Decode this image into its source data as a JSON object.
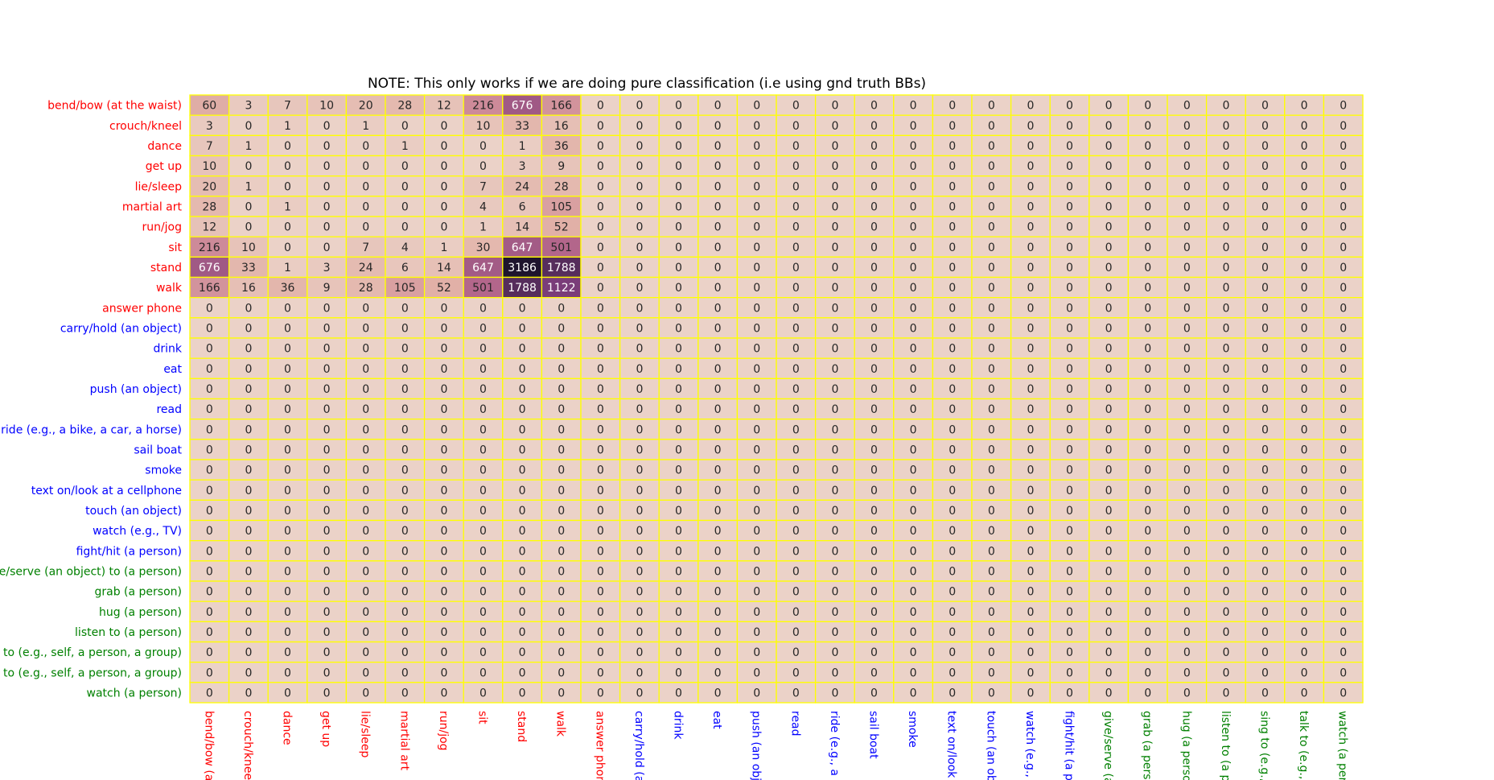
{
  "chart_data": {
    "type": "heatmap",
    "title": "NOTE: This only works if we are doing pure classification (i.e using gnd truth BBs)",
    "row_labels": [
      "bend/bow (at the waist)",
      "crouch/kneel",
      "dance",
      "get up",
      "lie/sleep",
      "martial art",
      "run/jog",
      "sit",
      "stand",
      "walk",
      "answer phone",
      "carry/hold (an object)",
      "drink",
      "eat",
      "push (an object)",
      "read",
      "ride (e.g., a bike, a car, a horse)",
      "sail boat",
      "smoke",
      "text on/look at a cellphone",
      "touch (an object)",
      "watch (e.g., TV)",
      "fight/hit (a person)",
      "give/serve (an object) to (a person)",
      "grab (a person)",
      "hug (a person)",
      "listen to (a person)",
      "sing to (e.g., self, a person, a group)",
      "talk to (e.g., self, a person, a group)",
      "watch (a person)"
    ],
    "col_labels": [
      "bend/bow (at",
      "crouch/kneel",
      "dance",
      "get up",
      "lie/sleep",
      "martial art",
      "run/jog",
      "sit",
      "stand",
      "walk",
      "answer phone",
      "carry/hold (an",
      "drink",
      "eat",
      "push (an obje",
      "read",
      "ride (e.g., a bi",
      "sail boat",
      "smoke",
      "text on/look a",
      "touch (an obje",
      "watch (e.g., T",
      "fight/hit (a pe",
      "give/serve (ar",
      "grab (a person",
      "hug (a person",
      "listen to (a pe",
      "sing to (e.g., s",
      "talk to (e.g., s",
      "watch (a pers"
    ],
    "category_colors": {
      "pose": "#ff0000",
      "object": "#0000ff",
      "person": "#008000"
    },
    "row_categories": [
      "pose",
      "pose",
      "pose",
      "pose",
      "pose",
      "pose",
      "pose",
      "pose",
      "pose",
      "pose",
      "pose",
      "object",
      "object",
      "object",
      "object",
      "object",
      "object",
      "object",
      "object",
      "object",
      "object",
      "object",
      "object",
      "person",
      "person",
      "person",
      "person",
      "person",
      "person",
      "person"
    ],
    "col_categories": [
      "pose",
      "pose",
      "pose",
      "pose",
      "pose",
      "pose",
      "pose",
      "pose",
      "pose",
      "pose",
      "pose",
      "object",
      "object",
      "object",
      "object",
      "object",
      "object",
      "object",
      "object",
      "object",
      "object",
      "object",
      "object",
      "person",
      "person",
      "person",
      "person",
      "person",
      "person",
      "person"
    ],
    "nonzero_block": [
      [
        60,
        3,
        7,
        10,
        20,
        28,
        12,
        216,
        676,
        166
      ],
      [
        3,
        0,
        1,
        0,
        1,
        0,
        0,
        10,
        33,
        16
      ],
      [
        7,
        1,
        0,
        0,
        0,
        1,
        0,
        0,
        1,
        36
      ],
      [
        10,
        0,
        0,
        0,
        0,
        0,
        0,
        0,
        3,
        9
      ],
      [
        20,
        1,
        0,
        0,
        0,
        0,
        0,
        7,
        24,
        28
      ],
      [
        28,
        0,
        1,
        0,
        0,
        0,
        0,
        4,
        6,
        105
      ],
      [
        12,
        0,
        0,
        0,
        0,
        0,
        0,
        1,
        14,
        52
      ],
      [
        216,
        10,
        0,
        0,
        7,
        4,
        1,
        30,
        647,
        501
      ],
      [
        676,
        33,
        1,
        3,
        24,
        6,
        14,
        647,
        3186,
        1788
      ],
      [
        166,
        16,
        36,
        9,
        28,
        105,
        52,
        501,
        1788,
        1122
      ]
    ],
    "other_cells_value": 0,
    "value_range": [
      0,
      3186
    ],
    "grid_color": "#ffff00"
  }
}
